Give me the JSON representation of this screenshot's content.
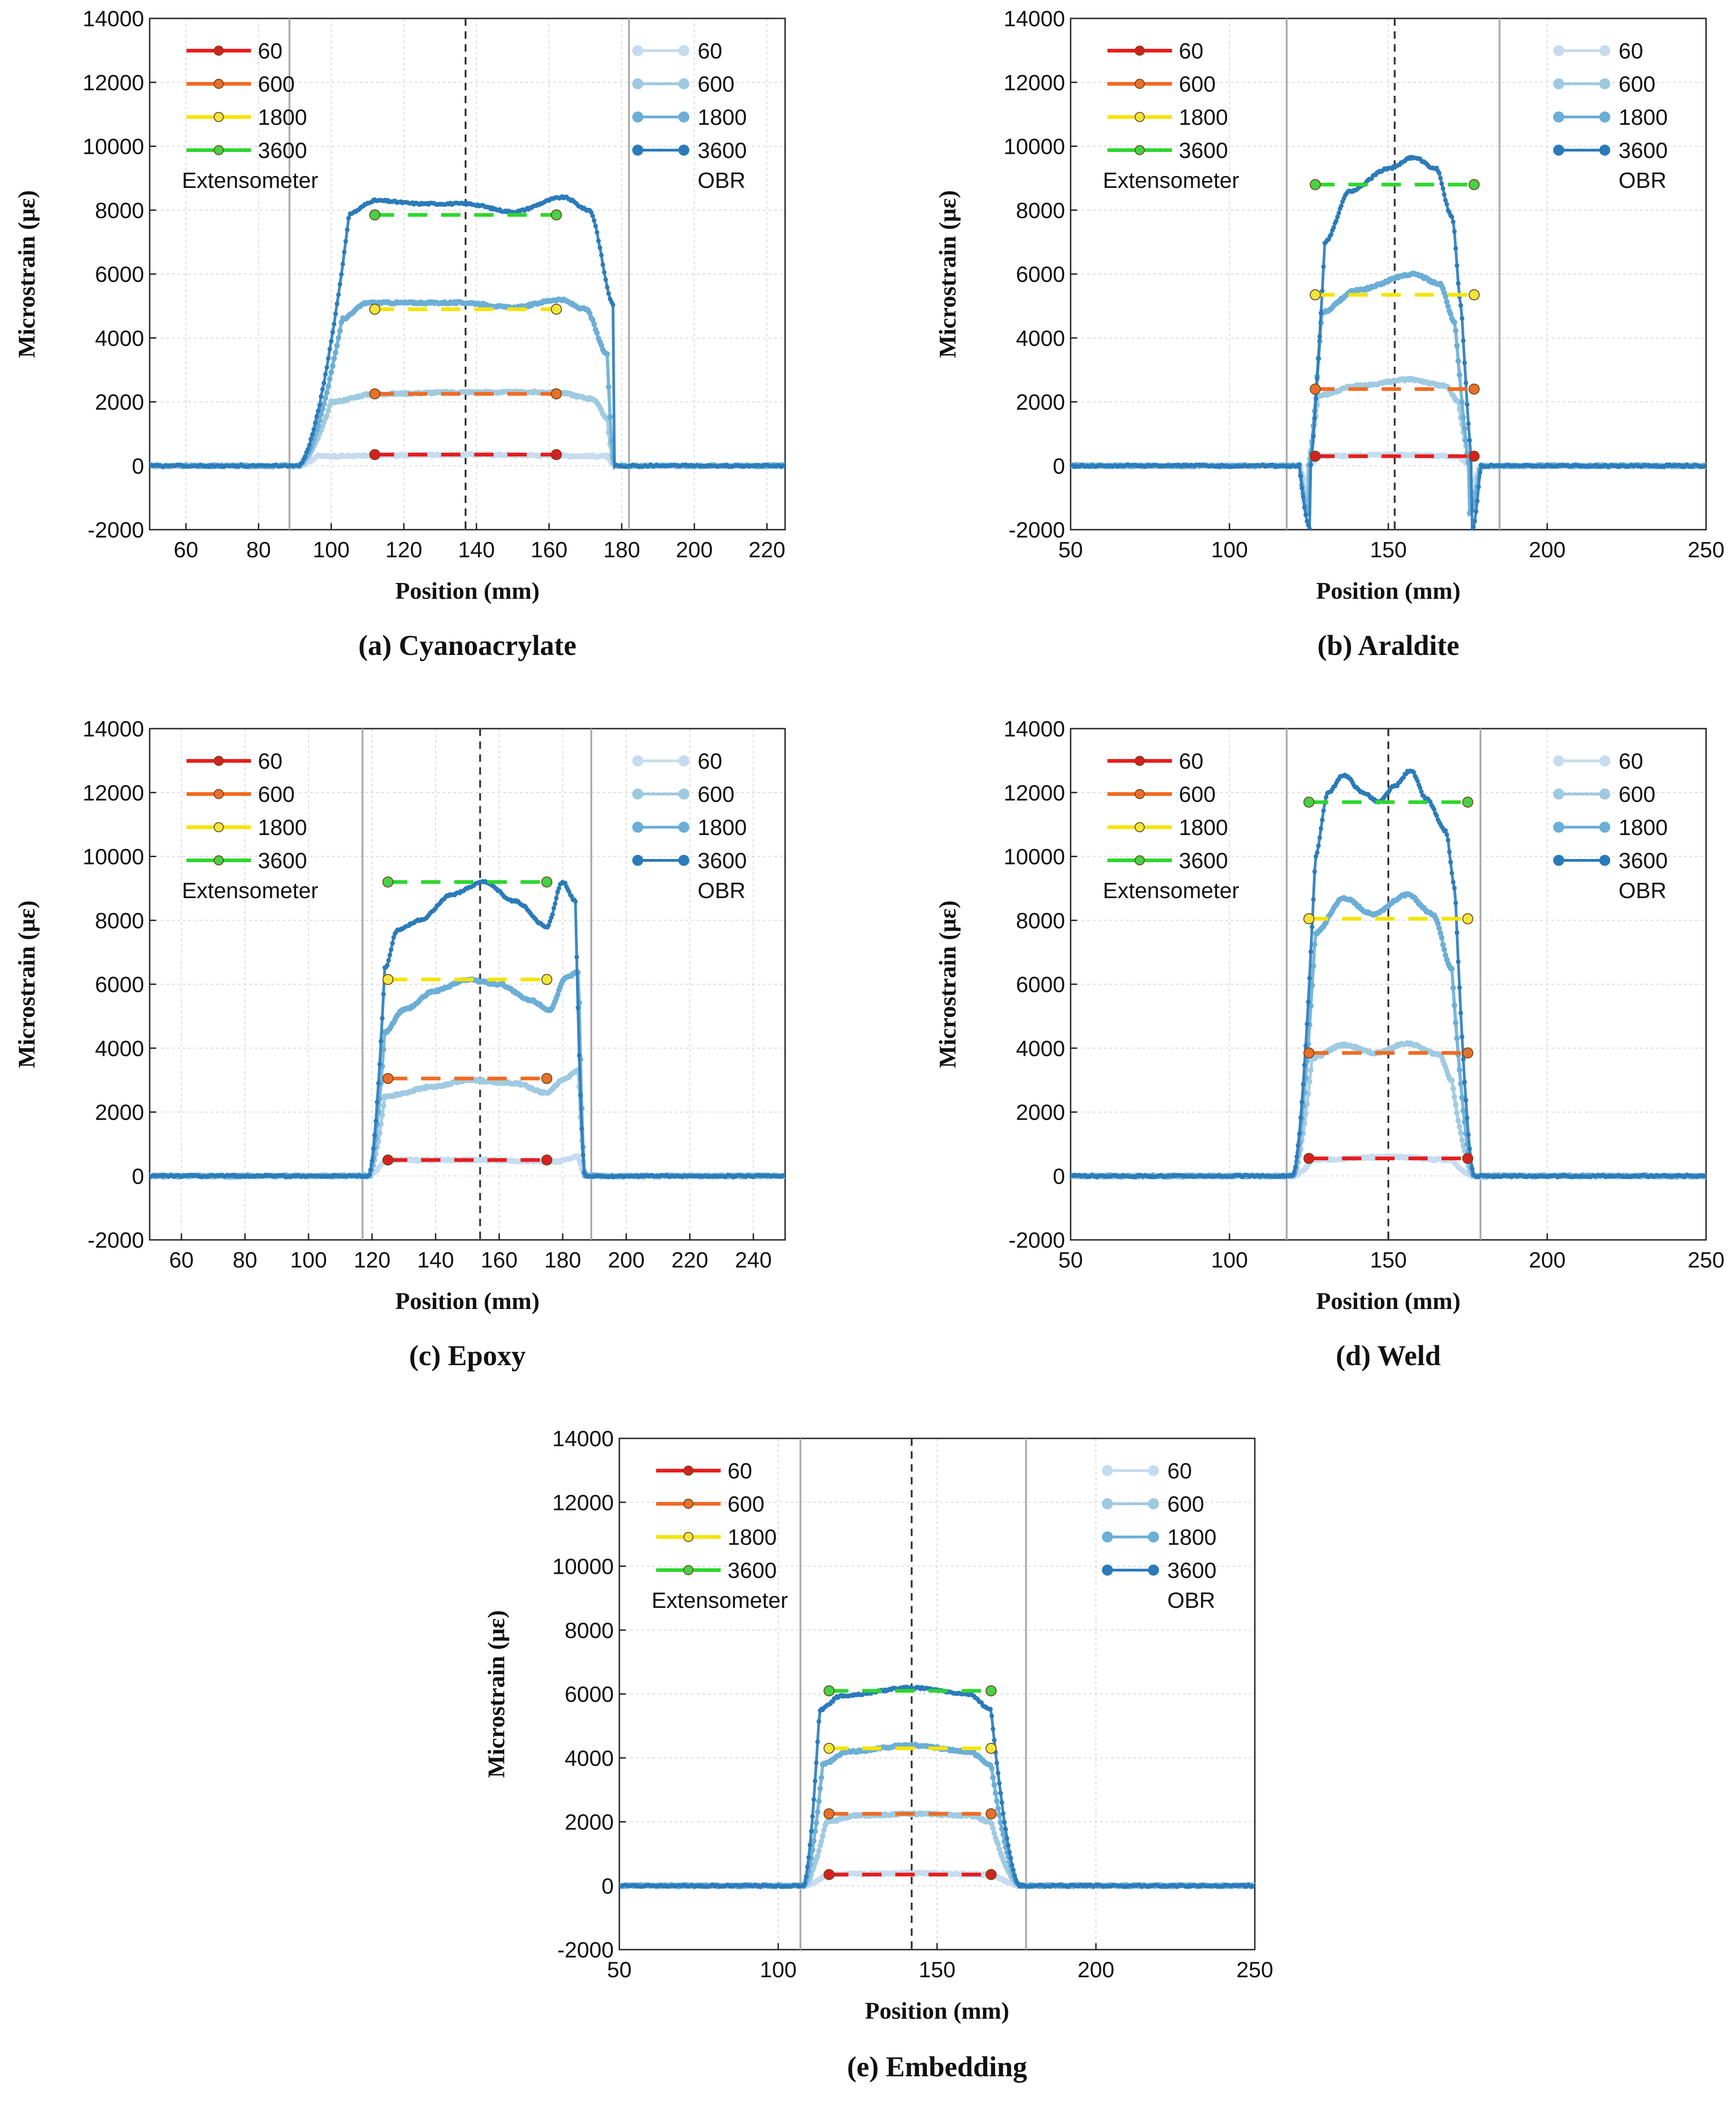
{
  "figure": {
    "common": {
      "ylabel": "Microstrain (με)",
      "xlabel": "Position (mm)",
      "ylim": [
        -2000,
        14000
      ],
      "yticks": [
        -2000,
        0,
        2000,
        4000,
        6000,
        8000,
        10000,
        12000,
        14000
      ],
      "extensometer_label": "Extensometer",
      "obr_label": "OBR",
      "series_names": [
        "60",
        "600",
        "1800",
        "3600"
      ],
      "extensometer_colors": [
        "#e81c1c",
        "#f26a21",
        "#f5e400",
        "#2ed62e"
      ],
      "extensometer_marker_colors": [
        "#d62020",
        "#e8702a",
        "#f2e63c",
        "#46d246"
      ],
      "obr_colors": [
        "#c6dbef",
        "#9ecae1",
        "#6baed6",
        "#2b7bba"
      ],
      "guide_line_color": "#aaaaaa",
      "center_line_color": "#333333"
    }
  },
  "chart_data": [
    {
      "type": "line",
      "caption": "(a) Cyanoacrylate",
      "title": "Cyanoacrylate",
      "xlabel": "Position (mm)",
      "ylabel": "Microstrain (με)",
      "xlim": [
        50,
        225
      ],
      "ylim": [
        -2000,
        14000
      ],
      "xticks": [
        60,
        80,
        100,
        120,
        140,
        160,
        180,
        200,
        220
      ],
      "grid": true,
      "vertical_guides": [
        88.5,
        182
      ],
      "center_line": 137,
      "edges": [
        91,
        178
      ],
      "transition_width": 9,
      "dip": 0,
      "extensometer": {
        "x": [
          112,
          162
        ],
        "series": [
          {
            "name": "60",
            "value": 350
          },
          {
            "name": "600",
            "value": 2250
          },
          {
            "name": "1800",
            "value": 4900
          },
          {
            "name": "3600",
            "value": 7850
          }
        ]
      },
      "obr": {
        "series": [
          {
            "name": "60",
            "profile": [
              [
                96,
                300
              ],
              [
                137,
                350
              ],
              [
                176,
                300
              ]
            ]
          },
          {
            "name": "600",
            "profile": [
              [
                100,
                2000
              ],
              [
                112,
                2250
              ],
              [
                137,
                2300
              ],
              [
                162,
                2300
              ],
              [
                172,
                2100
              ],
              [
                176,
                1500
              ]
            ]
          },
          {
            "name": "1800",
            "profile": [
              [
                103,
                4600
              ],
              [
                110,
                5100
              ],
              [
                125,
                5100
              ],
              [
                137,
                5100
              ],
              [
                150,
                4950
              ],
              [
                163,
                5200
              ],
              [
                170,
                4900
              ],
              [
                176,
                3500
              ]
            ]
          },
          {
            "name": "3600",
            "profile": [
              [
                105,
                7900
              ],
              [
                112,
                8300
              ],
              [
                125,
                8200
              ],
              [
                137,
                8200
              ],
              [
                150,
                7950
              ],
              [
                164,
                8400
              ],
              [
                171,
                8000
              ],
              [
                178,
                5000
              ]
            ]
          }
        ]
      }
    },
    {
      "type": "line",
      "caption": "(b) Araldite",
      "title": "Araldite",
      "xlabel": "Position (mm)",
      "ylabel": "Microstrain (με)",
      "xlim": [
        50,
        250
      ],
      "ylim": [
        -2000,
        14000
      ],
      "xticks": [
        50,
        100,
        150,
        200,
        250
      ],
      "grid": true,
      "vertical_guides": [
        118,
        185
      ],
      "center_line": 152,
      "edges": [
        122,
        179
      ],
      "transition_width": 7,
      "dip": -2000,
      "extensometer": {
        "x": [
          127,
          177
        ],
        "series": [
          {
            "name": "60",
            "value": 300
          },
          {
            "name": "600",
            "value": 2400
          },
          {
            "name": "1800",
            "value": 5350
          },
          {
            "name": "3600",
            "value": 8800
          }
        ]
      },
      "obr": {
        "series": [
          {
            "name": "60",
            "profile": [
              [
                128,
                300
              ],
              [
                152,
                350
              ],
              [
                172,
                300
              ]
            ]
          },
          {
            "name": "600",
            "profile": [
              [
                128,
                2200
              ],
              [
                140,
                2500
              ],
              [
                157,
                2700
              ],
              [
                168,
                2500
              ],
              [
                172,
                2000
              ]
            ]
          },
          {
            "name": "1800",
            "profile": [
              [
                129,
                4800
              ],
              [
                140,
                5500
              ],
              [
                158,
                6000
              ],
              [
                166,
                5700
              ],
              [
                171,
                4500
              ]
            ]
          },
          {
            "name": "3600",
            "profile": [
              [
                130,
                7000
              ],
              [
                138,
                8600
              ],
              [
                150,
                9300
              ],
              [
                158,
                9650
              ],
              [
                165,
                9300
              ],
              [
                170,
                7800
              ],
              [
                173,
                5000
              ]
            ]
          }
        ]
      }
    },
    {
      "type": "line",
      "caption": "(c) Epoxy",
      "title": "Epoxy",
      "xlabel": "Position (mm)",
      "ylabel": "Microstrain (με)",
      "xlim": [
        50,
        250
      ],
      "ylim": [
        -2000,
        14000
      ],
      "xticks": [
        60,
        80,
        100,
        120,
        140,
        160,
        180,
        200,
        220,
        240
      ],
      "grid": true,
      "vertical_guides": [
        117,
        189
      ],
      "center_line": 154,
      "edges": [
        119,
        187
      ],
      "transition_width": 5,
      "dip": 0,
      "extensometer": {
        "x": [
          125,
          175
        ],
        "series": [
          {
            "name": "60",
            "value": 500
          },
          {
            "name": "600",
            "value": 3050
          },
          {
            "name": "1800",
            "value": 6150
          },
          {
            "name": "3600",
            "value": 9200
          }
        ]
      },
      "obr": {
        "series": [
          {
            "name": "60",
            "profile": [
              [
                124,
                500
              ],
              [
                154,
                500
              ],
              [
                178,
                450
              ],
              [
                185,
                600
              ]
            ]
          },
          {
            "name": "600",
            "profile": [
              [
                124,
                2500
              ],
              [
                140,
                2800
              ],
              [
                150,
                3000
              ],
              [
                165,
                2900
              ],
              [
                175,
                2600
              ],
              [
                180,
                3000
              ],
              [
                185,
                3300
              ]
            ]
          },
          {
            "name": "1800",
            "profile": [
              [
                124,
                4500
              ],
              [
                130,
                5200
              ],
              [
                140,
                5800
              ],
              [
                150,
                6150
              ],
              [
                160,
                6000
              ],
              [
                170,
                5500
              ],
              [
                176,
                5200
              ],
              [
                181,
                6200
              ],
              [
                185,
                6400
              ]
            ]
          },
          {
            "name": "3600",
            "profile": [
              [
                124,
                6500
              ],
              [
                128,
                7700
              ],
              [
                135,
                8000
              ],
              [
                145,
                8800
              ],
              [
                155,
                9200
              ],
              [
                165,
                8600
              ],
              [
                175,
                7800
              ],
              [
                180,
                9200
              ],
              [
                184,
                8600
              ]
            ]
          }
        ]
      }
    },
    {
      "type": "line",
      "caption": "(d) Weld",
      "title": "Weld",
      "xlabel": "Position (mm)",
      "ylabel": "Microstrain (με)",
      "xlim": [
        50,
        250
      ],
      "ylim": [
        -2000,
        14000
      ],
      "xticks": [
        50,
        100,
        150,
        200,
        250
      ],
      "grid": true,
      "vertical_guides": [
        118,
        179
      ],
      "center_line": 150,
      "edges": [
        120,
        177
      ],
      "transition_width": 7,
      "dip": 0,
      "extensometer": {
        "x": [
          125,
          175
        ],
        "series": [
          {
            "name": "60",
            "value": 550
          },
          {
            "name": "600",
            "value": 3850
          },
          {
            "name": "1800",
            "value": 8050
          },
          {
            "name": "3600",
            "value": 11700
          }
        ]
      },
      "obr": {
        "series": [
          {
            "name": "60",
            "profile": [
              [
                126,
                500
              ],
              [
                150,
                600
              ],
              [
                170,
                500
              ]
            ]
          },
          {
            "name": "600",
            "profile": [
              [
                126,
                3700
              ],
              [
                136,
                4100
              ],
              [
                146,
                3850
              ],
              [
                156,
                4150
              ],
              [
                166,
                3800
              ],
              [
                170,
                3000
              ]
            ]
          },
          {
            "name": "1800",
            "profile": [
              [
                127,
                7600
              ],
              [
                136,
                8700
              ],
              [
                145,
                8200
              ],
              [
                156,
                8800
              ],
              [
                164,
                8200
              ],
              [
                170,
                6500
              ]
            ]
          },
          {
            "name": "3600",
            "profile": [
              [
                127,
                10000
              ],
              [
                131,
                12000
              ],
              [
                136,
                12550
              ],
              [
                142,
                12000
              ],
              [
                147,
                11700
              ],
              [
                152,
                12200
              ],
              [
                157,
                12700
              ],
              [
                162,
                11800
              ],
              [
                168,
                10800
              ],
              [
                171,
                9000
              ]
            ]
          }
        ]
      }
    },
    {
      "type": "line",
      "caption": "(e) Embedding",
      "title": "Embedding",
      "xlabel": "Position (mm)",
      "ylabel": "Microstrain (με)",
      "xlim": [
        50,
        250
      ],
      "ylim": [
        -2000,
        14000
      ],
      "xticks": [
        50,
        100,
        150,
        200,
        250
      ],
      "grid": true,
      "vertical_guides": [
        107,
        178
      ],
      "center_line": 142,
      "edges": [
        108,
        176
      ],
      "transition_width": 9,
      "dip": 0,
      "extensometer": {
        "x": [
          116,
          167
        ],
        "series": [
          {
            "name": "60",
            "value": 350
          },
          {
            "name": "600",
            "value": 2250
          },
          {
            "name": "1800",
            "value": 4300
          },
          {
            "name": "3600",
            "value": 6100
          }
        ]
      },
      "obr": {
        "series": [
          {
            "name": "60",
            "profile": [
              [
                115,
                350
              ],
              [
                142,
                400
              ],
              [
                168,
                350
              ]
            ]
          },
          {
            "name": "600",
            "profile": [
              [
                115,
                2000
              ],
              [
                125,
                2200
              ],
              [
                142,
                2250
              ],
              [
                160,
                2200
              ],
              [
                167,
                2000
              ]
            ]
          },
          {
            "name": "1800",
            "profile": [
              [
                114,
                3800
              ],
              [
                122,
                4200
              ],
              [
                142,
                4400
              ],
              [
                160,
                4200
              ],
              [
                167,
                3800
              ]
            ]
          },
          {
            "name": "3600",
            "profile": [
              [
                113,
                5500
              ],
              [
                120,
                5950
              ],
              [
                142,
                6200
              ],
              [
                160,
                6000
              ],
              [
                167,
                5500
              ]
            ]
          }
        ]
      }
    }
  ]
}
